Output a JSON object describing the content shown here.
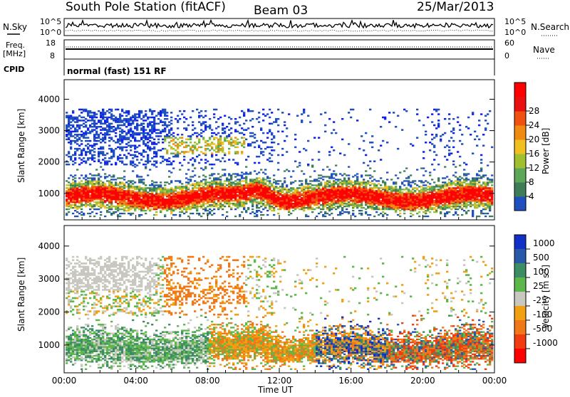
{
  "header": {
    "station": "South Pole Station (fitACF)",
    "beam": "Beam 03",
    "date": "25/Mar/2013"
  },
  "noise_panel": {
    "left_label": "N.Sky",
    "right_label": "N.Search",
    "left_ticks": [
      "10^5",
      "10^0"
    ],
    "right_ticks": [
      "10^5",
      "10^0"
    ]
  },
  "freq_panel": {
    "left_label_1": "Freq.",
    "left_label_2": "[MHz]",
    "right_label": "Nave",
    "left_ticks": [
      "18",
      "8"
    ],
    "right_ticks": [
      "60",
      "0"
    ],
    "freq_mhz": 12,
    "nave": 30
  },
  "cpid": {
    "label": "CPID",
    "text": "normal (fast) 151 RF"
  },
  "chart_data": [
    {
      "type": "heatmap",
      "title": "",
      "xlabel": "",
      "ylabel": "Slant Range [km]",
      "x_range_hours": [
        0,
        24
      ],
      "ylim_km": [
        180,
        4600
      ],
      "x_tick_labels": [
        "00:00",
        "04:00",
        "08:00",
        "12:00",
        "16:00",
        "20:00",
        "00:00"
      ],
      "y_ticks": [
        1000,
        2000,
        3000,
        4000
      ],
      "colorbar": {
        "label": "Power [dB]",
        "ticks": [
          "4",
          "8",
          "12",
          "16",
          "20",
          "24",
          "28"
        ],
        "colors": [
          "#1020f0",
          "#2050c0",
          "#3e7d58",
          "#5da858",
          "#a0c030",
          "#f0c020",
          "#f08a10",
          "#f05010",
          "#e81010",
          "#ff0000"
        ]
      }
    },
    {
      "type": "heatmap",
      "title": "",
      "xlabel": "Time UT",
      "ylabel": "Slant Range [km]",
      "x_range_hours": [
        0,
        24
      ],
      "ylim_km": [
        180,
        4600
      ],
      "x_tick_labels": [
        "00:00",
        "04:00",
        "08:00",
        "12:00",
        "16:00",
        "20:00",
        "00:00"
      ],
      "y_ticks": [
        1000,
        2000,
        3000,
        4000
      ],
      "colorbar": {
        "label": "Velocity [m s",
        "label_sup": "-1",
        "label_close": "]",
        "ticks": [
          "1000",
          "500",
          "100",
          "25",
          "-25",
          "-100",
          "-500",
          "-1000"
        ],
        "colors": [
          "#1030c8",
          "#2858a8",
          "#3c8c64",
          "#5cb84a",
          "#c8c8c0",
          "#f0a010",
          "#f07818",
          "#f03c10",
          "#ff0000"
        ]
      }
    }
  ]
}
